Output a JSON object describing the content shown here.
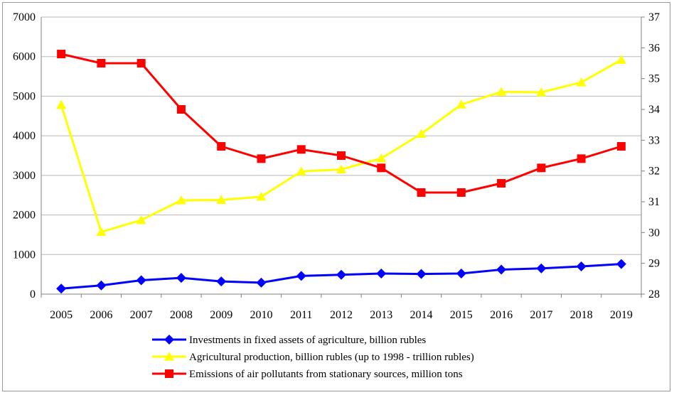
{
  "chart_data": {
    "type": "line",
    "categories": [
      "2005",
      "2006",
      "2007",
      "2008",
      "2009",
      "2010",
      "2011",
      "2012",
      "2013",
      "2014",
      "2015",
      "2016",
      "2017",
      "2018",
      "2019"
    ],
    "y_left": {
      "ticks": [
        "0",
        "1000",
        "2000",
        "3000",
        "4000",
        "5000",
        "6000",
        "7000"
      ],
      "ylim": [
        0,
        7000
      ]
    },
    "y_right": {
      "ticks": [
        "28",
        "29",
        "30",
        "31",
        "32",
        "33",
        "34",
        "35",
        "36",
        "37"
      ],
      "ylim": [
        28,
        37
      ]
    },
    "grid": "horizontal",
    "legend_placement": "bottom",
    "series": [
      {
        "name": "Investments in fixed assets of agriculture, billion rubles",
        "axis": "left",
        "color": "#0000ff",
        "marker": "diamond",
        "values": [
          140,
          220,
          350,
          410,
          320,
          290,
          460,
          490,
          520,
          510,
          520,
          620,
          650,
          700,
          760
        ]
      },
      {
        "name": "Agricultural production, billion rubles (up to 1998 - trillion rubles)",
        "axis": "left",
        "color": "#ffff00",
        "marker": "triangle",
        "values": [
          4780,
          1570,
          1870,
          2370,
          2380,
          2460,
          3100,
          3150,
          3430,
          4050,
          4790,
          5110,
          5100,
          5350,
          5920
        ]
      },
      {
        "name": "Emissions of air pollutants from stationary sources, million tons",
        "axis": "right",
        "color": "#ff0000",
        "marker": "square",
        "values": [
          35.8,
          35.5,
          35.5,
          34.0,
          32.8,
          32.4,
          32.7,
          32.5,
          32.1,
          31.3,
          31.3,
          31.6,
          32.1,
          32.4,
          32.8
        ]
      }
    ]
  }
}
